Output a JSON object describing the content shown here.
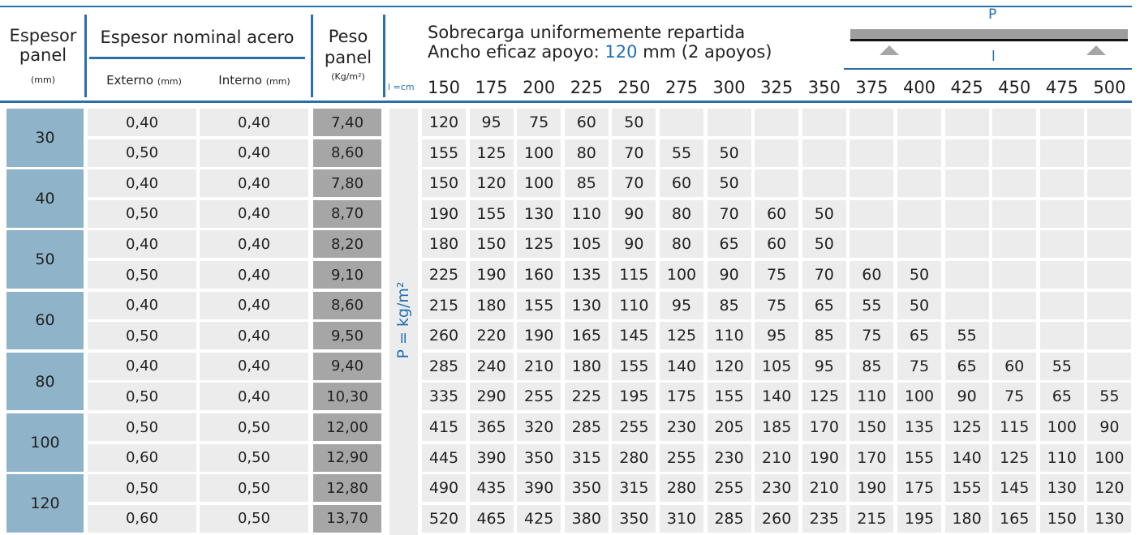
{
  "header": {
    "espesor_panel": [
      "Espesor",
      "panel"
    ],
    "espesor_unit": "(mm)",
    "nominal": "Espesor nominal acero",
    "externo": "Externo",
    "externo_unit": "(mm)",
    "interno": "Interno",
    "interno_unit": "(mm)",
    "peso": [
      "Peso",
      "panel"
    ],
    "peso_unit": "(Kg/m²)",
    "span_unit": "l =cm",
    "load_title": "Sobrecarga uniformemente repartida",
    "support": {
      "prefix": "Ancho eficaz apoyo:",
      "width": "120",
      "suffix": "mm (2 apoyos)"
    },
    "diagram": {
      "load": "P",
      "length": "l"
    },
    "spans": [
      150,
      175,
      200,
      225,
      250,
      275,
      300,
      325,
      350,
      375,
      400,
      425,
      450,
      475,
      500
    ]
  },
  "load_unit": "P = kg/m²",
  "groups": [
    {
      "thickness": "30",
      "rows": [
        {
          "externo": "0,40",
          "interno": "0,40",
          "peso": "7,40",
          "loads": [
            120,
            95,
            75,
            60,
            50
          ]
        },
        {
          "externo": "0,50",
          "interno": "0,40",
          "peso": "8,60",
          "loads": [
            155,
            125,
            100,
            80,
            70,
            55,
            50
          ]
        }
      ]
    },
    {
      "thickness": "40",
      "rows": [
        {
          "externo": "0,40",
          "interno": "0,40",
          "peso": "7,80",
          "loads": [
            150,
            120,
            100,
            85,
            70,
            60,
            50
          ]
        },
        {
          "externo": "0,50",
          "interno": "0,40",
          "peso": "8,70",
          "loads": [
            190,
            155,
            130,
            110,
            90,
            80,
            70,
            60,
            50
          ]
        }
      ]
    },
    {
      "thickness": "50",
      "rows": [
        {
          "externo": "0,40",
          "interno": "0,40",
          "peso": "8,20",
          "loads": [
            180,
            150,
            125,
            105,
            90,
            80,
            65,
            60,
            50
          ]
        },
        {
          "externo": "0,50",
          "interno": "0,40",
          "peso": "9,10",
          "loads": [
            225,
            190,
            160,
            135,
            115,
            100,
            90,
            75,
            70,
            60,
            50
          ]
        }
      ]
    },
    {
      "thickness": "60",
      "rows": [
        {
          "externo": "0,40",
          "interno": "0,40",
          "peso": "8,60",
          "loads": [
            215,
            180,
            155,
            130,
            110,
            95,
            85,
            75,
            65,
            55,
            50
          ]
        },
        {
          "externo": "0,50",
          "interno": "0,40",
          "peso": "9,50",
          "loads": [
            260,
            220,
            190,
            165,
            145,
            125,
            110,
            95,
            85,
            75,
            65,
            55
          ]
        }
      ]
    },
    {
      "thickness": "80",
      "rows": [
        {
          "externo": "0,40",
          "interno": "0,40",
          "peso": "9,40",
          "loads": [
            285,
            240,
            210,
            180,
            155,
            140,
            120,
            105,
            95,
            85,
            75,
            65,
            60,
            55
          ]
        },
        {
          "externo": "0,50",
          "interno": "0,40",
          "peso": "10,30",
          "loads": [
            335,
            290,
            255,
            225,
            195,
            175,
            155,
            140,
            125,
            110,
            100,
            90,
            75,
            65,
            55
          ]
        }
      ]
    },
    {
      "thickness": "100",
      "rows": [
        {
          "externo": "0,50",
          "interno": "0,50",
          "peso": "12,00",
          "loads": [
            415,
            365,
            320,
            285,
            255,
            230,
            205,
            185,
            170,
            150,
            135,
            125,
            115,
            100,
            90
          ]
        },
        {
          "externo": "0,60",
          "interno": "0,50",
          "peso": "12,90",
          "loads": [
            445,
            390,
            350,
            315,
            280,
            255,
            230,
            210,
            190,
            170,
            155,
            140,
            125,
            110,
            100
          ]
        }
      ]
    },
    {
      "thickness": "120",
      "rows": [
        {
          "externo": "0,50",
          "interno": "0,50",
          "peso": "12,80",
          "loads": [
            490,
            435,
            390,
            350,
            315,
            280,
            255,
            230,
            210,
            190,
            175,
            155,
            145,
            130,
            120
          ]
        },
        {
          "externo": "0,60",
          "interno": "0,50",
          "peso": "13,70",
          "loads": [
            520,
            465,
            425,
            380,
            350,
            310,
            285,
            260,
            235,
            215,
            195,
            180,
            165,
            150,
            130
          ]
        }
      ]
    }
  ]
}
